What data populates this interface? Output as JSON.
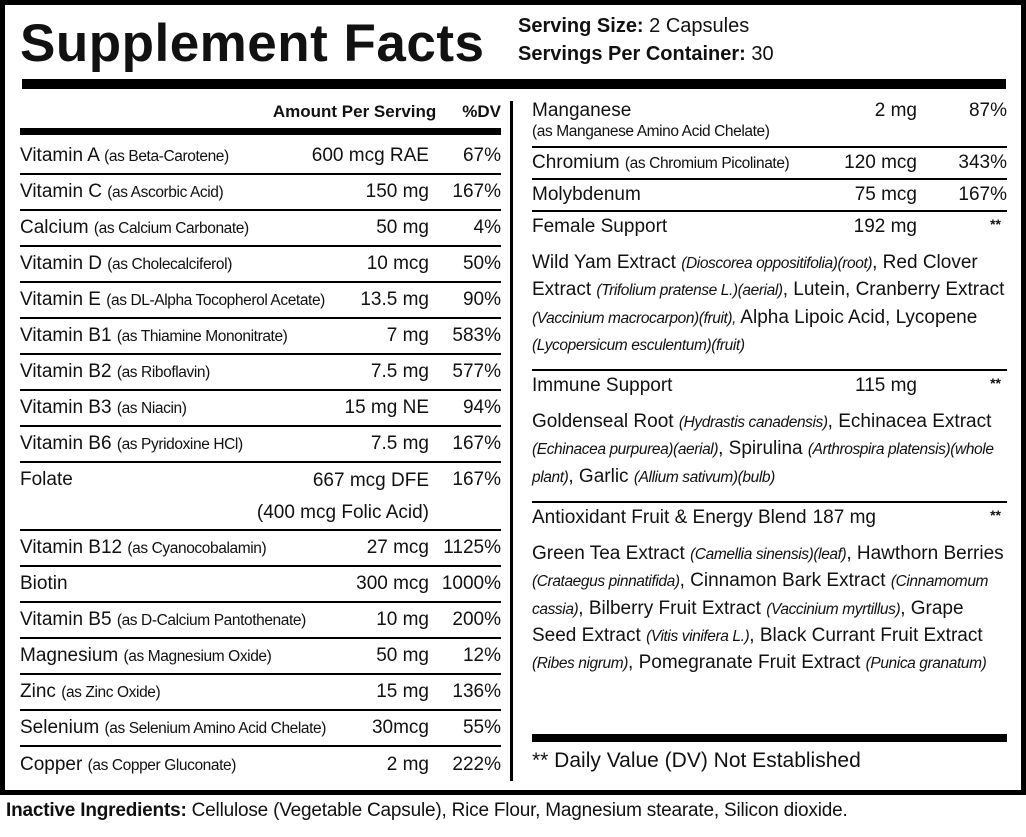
{
  "title": "Supplement Facts",
  "serving": {
    "size_label": "Serving Size:",
    "size_value": " 2 Capsules",
    "per_container_label": "Servings Per Container:",
    "per_container_value": " 30"
  },
  "header": {
    "amount": "Amount Per Serving",
    "dv": "%DV"
  },
  "left_rows": [
    {
      "name": "Vitamin A",
      "source": "(as Beta-Carotene)",
      "amount": "600 mcg RAE",
      "dv": "67%"
    },
    {
      "name": "Vitamin C",
      "source": "(as Ascorbic Acid)",
      "amount": "150 mg",
      "dv": "167%"
    },
    {
      "name": "Calcium",
      "source": "(as Calcium Carbonate)",
      "amount": "50 mg",
      "dv": "4%"
    },
    {
      "name": "Vitamin D",
      "source": "(as Cholecalciferol)",
      "amount": "10 mcg",
      "dv": "50%"
    },
    {
      "name": "Vitamin E",
      "source": "(as DL-Alpha Tocopherol Acetate)",
      "amount": "13.5 mg",
      "dv": "90%"
    },
    {
      "name": "Vitamin B1",
      "source": "(as Thiamine Mononitrate)",
      "amount": "7 mg",
      "dv": "583%"
    },
    {
      "name": "Vitamin B2",
      "source": "(as Riboflavin)",
      "amount": "7.5 mg",
      "dv": "577%"
    },
    {
      "name": "Vitamin B3",
      "source": "(as Niacin)",
      "amount": "15 mg NE",
      "dv": "94%"
    },
    {
      "name": "Vitamin B6",
      "source": "(as Pyridoxine HCl)",
      "amount": "7.5 mg",
      "dv": "167%"
    },
    {
      "name": "Folate",
      "source": "",
      "amount": "667 mcg DFE",
      "amount2": "(400 mcg Folic Acid)",
      "dv": "167%"
    },
    {
      "name": "Vitamin B12",
      "source": "(as Cyanocobalamin)",
      "amount": "27 mcg",
      "dv": "1125%"
    },
    {
      "name": "Biotin",
      "source": "",
      "amount": "300 mcg",
      "dv": "1000%"
    },
    {
      "name": "Vitamin B5",
      "source": "(as D-Calcium Pantothenate)",
      "amount": "10 mg",
      "dv": "200%"
    },
    {
      "name": "Magnesium",
      "source": "(as Magnesium Oxide)",
      "amount": "50 mg",
      "dv": "12%"
    },
    {
      "name": "Zinc",
      "source": "(as Zinc Oxide)",
      "amount": "15 mg",
      "dv": "136%"
    },
    {
      "name": "Selenium",
      "source": "(as Selenium Amino Acid Chelate)",
      "amount": "30mcg",
      "dv": "55%"
    },
    {
      "name": "Copper",
      "source": "(as Copper Gluconate)",
      "amount": "2 mg",
      "dv": "222%"
    }
  ],
  "right_rows": [
    {
      "name": "Manganese",
      "source": "(as Manganese Amino Acid Chelate)",
      "amount": "2 mg",
      "dv": "87%"
    },
    {
      "name": "Chromium",
      "source": "(as Chromium Picolinate)",
      "amount": "120 mcg",
      "dv": "343%"
    },
    {
      "name": "Molybdenum",
      "source": "",
      "amount": "75 mcg",
      "dv": "167%"
    }
  ],
  "blends": [
    {
      "name": "Female Support",
      "amount": "192 mg",
      "dv": "**",
      "parts": [
        [
          "Wild Yam Extract ",
          ""
        ],
        [
          "",
          "(Dioscorea oppositifolia)(root)"
        ],
        [
          ", Red Clover Extract ",
          ""
        ],
        [
          "",
          "(Trifolium pratense L.)(aerial)"
        ],
        [
          ", Lutein, Cranberry Extract ",
          ""
        ],
        [
          "",
          "(Vaccinium macrocarpon)(fruit),"
        ],
        [
          " Alpha Lipoic Acid, Lycopene ",
          ""
        ],
        [
          "",
          "(Lycopersicum esculentum)(fruit)"
        ]
      ]
    },
    {
      "name": "Immune Support",
      "amount": "115 mg",
      "dv": "**",
      "parts": [
        [
          "Goldenseal Root ",
          ""
        ],
        [
          "",
          "(Hydrastis canadensis)"
        ],
        [
          ", Echinacea Extract ",
          ""
        ],
        [
          "",
          "(Echinacea purpurea)(aerial)"
        ],
        [
          ", Spirulina ",
          ""
        ],
        [
          "",
          "(Arthrospira platensis)(whole plant)"
        ],
        [
          ", Garlic ",
          ""
        ],
        [
          "",
          "(Allium sativum)(bulb)"
        ]
      ]
    },
    {
      "name": "Antioxidant Fruit & Energy Blend",
      "amount": "187 mg",
      "dv": "**",
      "parts": [
        [
          "Green Tea Extract ",
          ""
        ],
        [
          "",
          "(Camellia sinensis)(leaf)"
        ],
        [
          ", Hawthorn Berries ",
          ""
        ],
        [
          "",
          "(Crataegus pinnatifida)"
        ],
        [
          ", Cinnamon Bark Extract ",
          ""
        ],
        [
          "",
          "(Cinnamomum cassia)"
        ],
        [
          ", Bilberry Fruit Extract ",
          ""
        ],
        [
          "",
          "(Vaccinium myrtillus)"
        ],
        [
          ", Grape Seed Extract ",
          ""
        ],
        [
          "",
          "(Vitis vinifera L.)"
        ],
        [
          ", Black Currant Fruit Extract ",
          ""
        ],
        [
          "",
          "(Ribes nigrum)"
        ],
        [
          ", Pomegranate Fruit Extract ",
          ""
        ],
        [
          "",
          "(Punica granatum)"
        ]
      ]
    }
  ],
  "dv_note": "** Daily Value (DV) Not Established",
  "inactive": {
    "label": "Inactive Ingredients:",
    "text": " Cellulose (Vegetable Capsule), Rice Flour, Magnesium stearate, Silicon dioxide."
  }
}
